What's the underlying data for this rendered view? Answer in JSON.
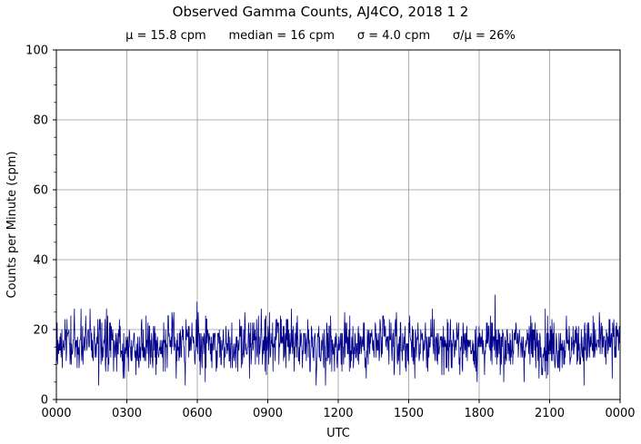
{
  "chart_data": {
    "type": "line",
    "title": "Observed Gamma Counts, AJ4CO, 2018 1 2",
    "subtitle": "μ = 15.8 cpm      median = 16 cpm      σ = 4.0 cpm      σ/μ = 26%",
    "xlabel": "UTC",
    "ylabel": "Counts per Minute (cpm)",
    "ylim": [
      0,
      100
    ],
    "xlim": [
      "0000",
      "0000"
    ],
    "x_ticks": [
      "0000",
      "0300",
      "0600",
      "0900",
      "1200",
      "1500",
      "1800",
      "2100",
      "0000"
    ],
    "y_ticks": [
      "0",
      "20",
      "40",
      "60",
      "80",
      "100"
    ],
    "grid": true,
    "series": [
      {
        "color": "#00008b",
        "samples_per_day": 1440,
        "mean": 15.8,
        "median": 16,
        "std": 4.0,
        "min": 4,
        "max": 30
      }
    ]
  }
}
